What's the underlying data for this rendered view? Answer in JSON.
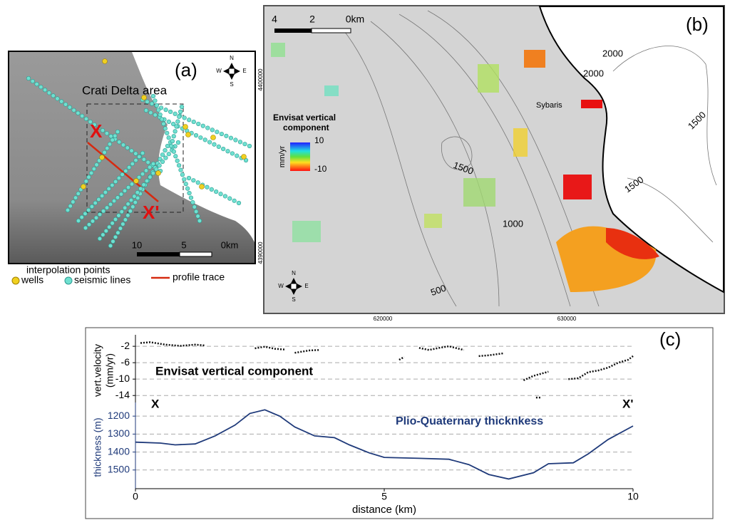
{
  "panel_a": {
    "label": "(a)",
    "area_label": "Crati Delta area",
    "profile_start": "X",
    "profile_end": "X'",
    "scale": [
      "10",
      "5",
      "0km"
    ],
    "compass": [
      "N",
      "S",
      "E",
      "W"
    ],
    "legend": {
      "title": "interpolation points",
      "wells": "wells",
      "seismic": "seismic lines",
      "profile": "profile trace"
    }
  },
  "panel_b": {
    "label": "(b)",
    "scale": [
      "4",
      "2",
      "0km"
    ],
    "contour_labels": [
      "2000",
      "2000",
      "1500",
      "1500",
      "1000",
      "1500",
      "500"
    ],
    "colorbar": {
      "title": [
        "Envisat vertical",
        "component"
      ],
      "max": 10,
      "unit": "mm/yr",
      "min": -10
    },
    "place": "Sybaris",
    "y_coords": [
      "4400000",
      "4390000"
    ],
    "x_coords": [
      "620000",
      "630000"
    ],
    "compass": [
      "N",
      "S",
      "E",
      "W"
    ]
  },
  "chart_data": {
    "type": "line",
    "label": "(c)",
    "x_label": "distance (km)",
    "y_label": [
      "vert.velocity",
      "(mm/yr)"
    ],
    "y2_label": "thickness (m)",
    "annotations": [
      "Envisat vertical component",
      "Plio-Quaternary thicknkess",
      "X",
      "X'"
    ],
    "xlim": [
      0,
      10
    ],
    "xticks": [
      0,
      5,
      10
    ],
    "ylim": [
      -15.7,
      0.8
    ],
    "yticks": [
      -2,
      -6,
      -10,
      -14
    ],
    "y2lim": [
      1604,
      1124
    ],
    "y2ticks": [
      1200,
      1300,
      1400,
      1500
    ],
    "grid": true,
    "series": [
      {
        "color": "#111111",
        "dash": true,
        "x": [
          0.1,
          0.3,
          0.6,
          0.9,
          1.2,
          1.4,
          null,
          2.4,
          2.6,
          2.8,
          3.0,
          null,
          3.2,
          3.5,
          3.7,
          null,
          5.3,
          5.4,
          null,
          5.7,
          5.9,
          6.1,
          6.3,
          6.5,
          6.6,
          null,
          6.9,
          7.1,
          7.4,
          null,
          7.8,
          8.0,
          8.3,
          null,
          8.05,
          8.15,
          null,
          8.7,
          8.9,
          9.1,
          9.3,
          9.5,
          9.7,
          9.9,
          10.0
        ],
        "values": [
          -1.2,
          -1.0,
          -1.6,
          -1.9,
          -1.6,
          -1.8,
          null,
          -2.5,
          -2.1,
          -2.6,
          -2.8,
          null,
          -3.6,
          -3.0,
          -2.9,
          null,
          -5.3,
          -4.6,
          null,
          -2.4,
          -2.9,
          -2.4,
          -2.0,
          -2.6,
          -2.9,
          null,
          -4.4,
          -4.2,
          -3.7,
          null,
          -10.3,
          -9.2,
          -8.2,
          null,
          -14.5,
          -14.5,
          null,
          -10.0,
          -9.8,
          -8.3,
          -7.9,
          -7.2,
          -6.0,
          -5.3,
          -4.4
        ]
      },
      {
        "color": "#1f3a7a",
        "axis": "y2",
        "x": [
          0,
          0.5,
          0.8,
          1.2,
          1.6,
          2.0,
          2.3,
          2.6,
          2.9,
          3.2,
          3.6,
          4.0,
          4.3,
          4.7,
          5.0,
          5.7,
          6.3,
          6.7,
          7.1,
          7.5,
          8.0,
          8.3,
          8.8,
          9.1,
          9.5,
          10.0
        ],
        "values": [
          1345,
          1350,
          1360,
          1355,
          1310,
          1250,
          1185,
          1165,
          1200,
          1260,
          1310,
          1320,
          1360,
          1405,
          1430,
          1435,
          1440,
          1470,
          1525,
          1550,
          1515,
          1465,
          1460,
          1410,
          1330,
          1255
        ]
      }
    ]
  }
}
